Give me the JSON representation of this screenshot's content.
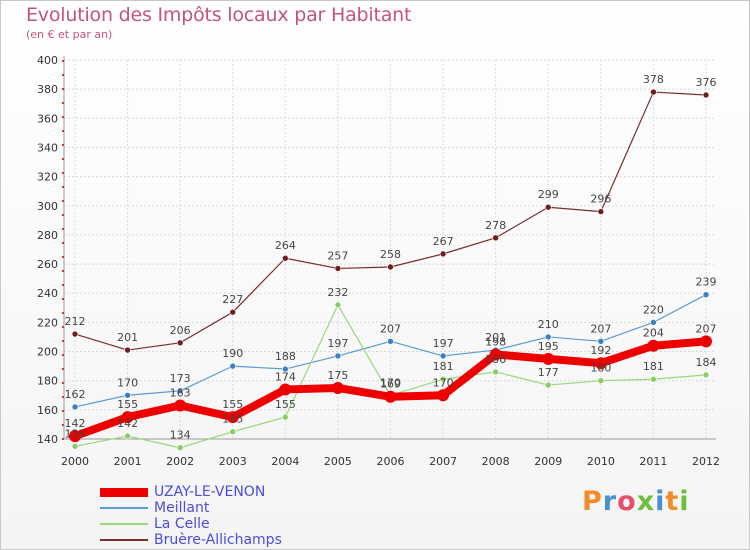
{
  "title": "Evolution des Impôts locaux par Habitant",
  "subtitle": "(en € et par an)",
  "logo_text": "Proxiti",
  "chart_data": {
    "type": "line",
    "title": "Evolution des Impôts locaux par Habitant",
    "ylabel": "(en € et par an)",
    "xlabel": "",
    "ylim": [
      140,
      400
    ],
    "ytick_step": 20,
    "x": [
      "2000",
      "2001",
      "2002",
      "2003",
      "2004",
      "2005",
      "2006",
      "2007",
      "2008",
      "2009",
      "2010",
      "2011",
      "2012"
    ],
    "grid": true,
    "legend_position": "bottom-left",
    "series": [
      {
        "name": "Bruère-Allichamps",
        "color": "#7b2d2d",
        "line_width": 1.2,
        "marker_color": "#6b1f1f",
        "values": [
          212,
          201,
          206,
          227,
          264,
          257,
          258,
          267,
          278,
          299,
          296,
          378,
          376
        ]
      },
      {
        "name": "Meillant",
        "color": "#5a9bd5",
        "line_width": 1.2,
        "marker_color": "#3d7fc0",
        "values": [
          162,
          170,
          173,
          190,
          188,
          197,
          207,
          197,
          201,
          210,
          207,
          220,
          239
        ]
      },
      {
        "name": "La Celle",
        "color": "#9ad77a",
        "line_width": 1.2,
        "marker_color": "#8ccc66",
        "values": [
          135,
          142,
          134,
          145,
          155,
          232,
          170,
          181,
          186,
          177,
          180,
          181,
          184
        ]
      },
      {
        "name": "UZAY-LE-VENON",
        "color": "#ee0000",
        "line_width": 8,
        "marker_color": "#ee0000",
        "values": [
          142,
          155,
          163,
          155,
          174,
          175,
          169,
          170,
          198,
          195,
          192,
          204,
          207
        ]
      }
    ],
    "legend_order": [
      "UZAY-LE-VENON",
      "Meillant",
      "La Celle",
      "Bruère-Allichamps"
    ]
  }
}
